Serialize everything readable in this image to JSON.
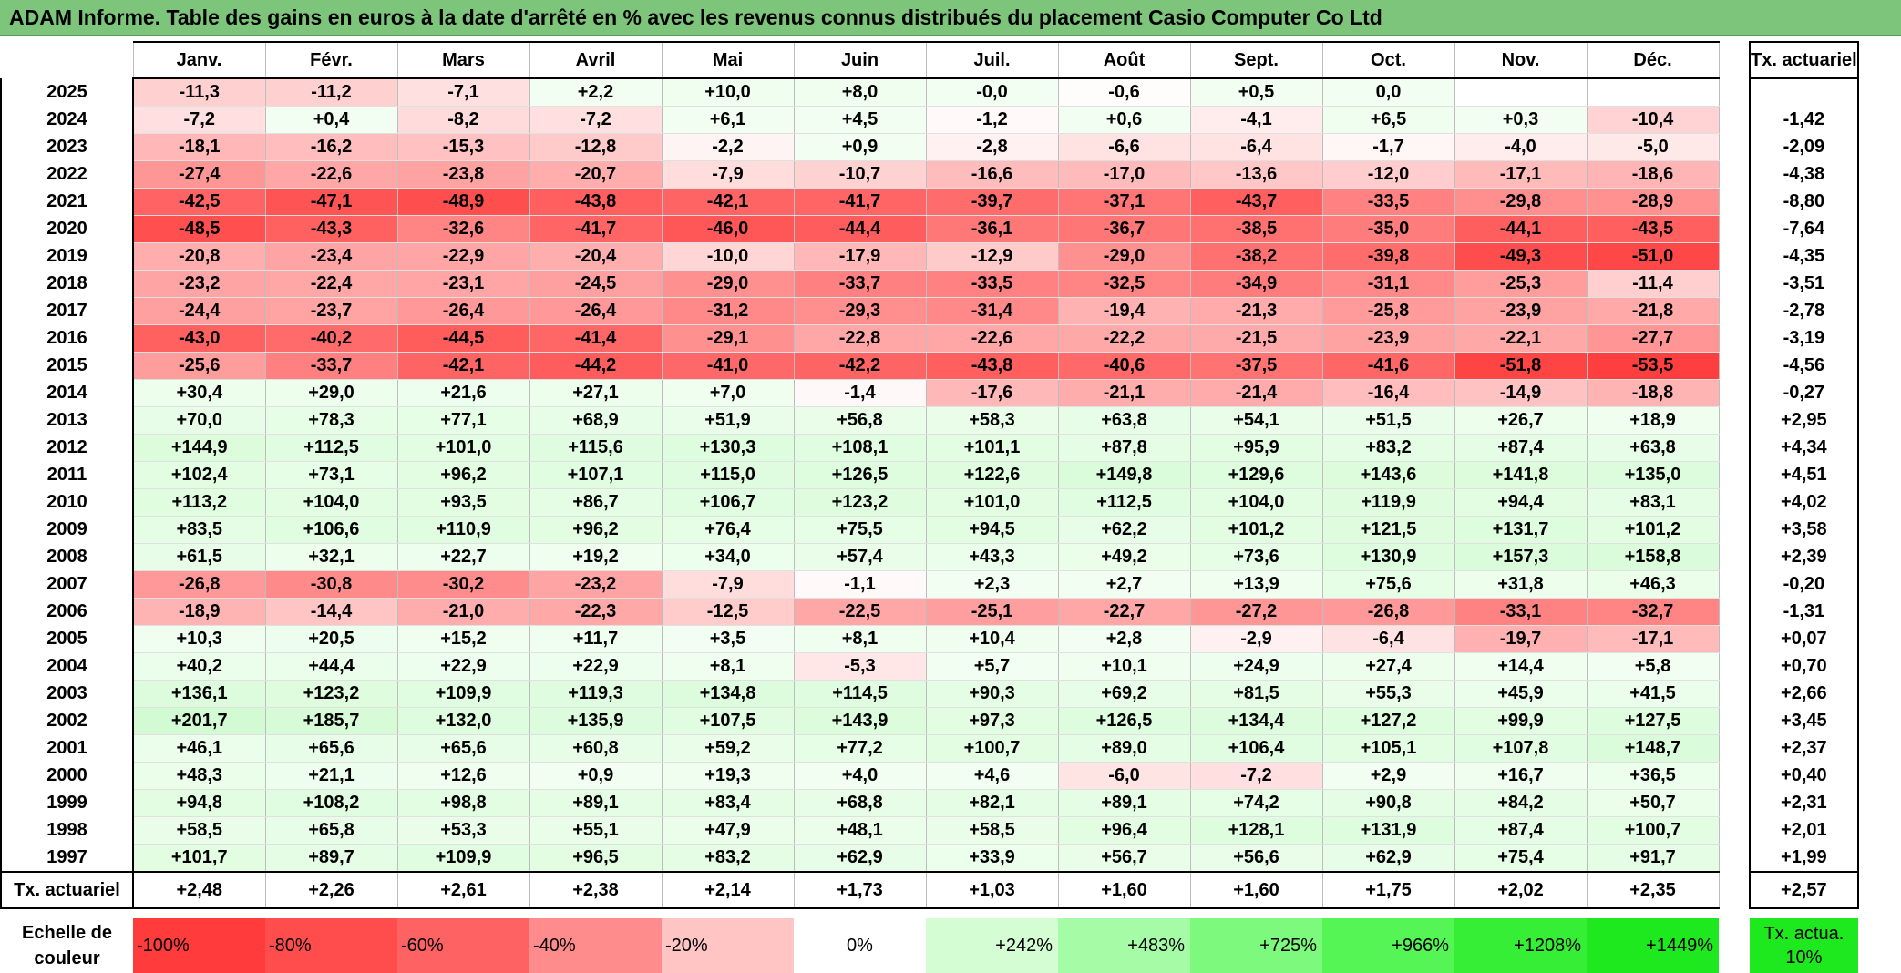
{
  "title": "ADAM Informe. Table des gains en euros à la date d'arrêté en % avec les revenus connus distribués du placement Casio Computer Co Ltd",
  "months": [
    "Janv.",
    "Févr.",
    "Mars",
    "Avril",
    "Mai",
    "Juin",
    "Juil.",
    "Août",
    "Sept.",
    "Oct.",
    "Nov.",
    "Déc."
  ],
  "rate_header": "Tx. actuariel",
  "rows": [
    {
      "year": "2025",
      "values": [
        "-11,3",
        "-11,2",
        "-7,1",
        "+2,2",
        "+10,0",
        "+8,0",
        "-0,0",
        "-0,6",
        "+0,5",
        "0,0",
        "",
        ""
      ],
      "rate": ""
    },
    {
      "year": "2024",
      "values": [
        "-7,2",
        "+0,4",
        "-8,2",
        "-7,2",
        "+6,1",
        "+4,5",
        "-1,2",
        "+0,6",
        "-4,1",
        "+6,5",
        "+0,3",
        "-10,4"
      ],
      "rate": "-1,42"
    },
    {
      "year": "2023",
      "values": [
        "-18,1",
        "-16,2",
        "-15,3",
        "-12,8",
        "-2,2",
        "+0,9",
        "-2,8",
        "-6,6",
        "-6,4",
        "-1,7",
        "-4,0",
        "-5,0"
      ],
      "rate": "-2,09"
    },
    {
      "year": "2022",
      "values": [
        "-27,4",
        "-22,6",
        "-23,8",
        "-20,7",
        "-7,9",
        "-10,7",
        "-16,6",
        "-17,0",
        "-13,6",
        "-12,0",
        "-17,1",
        "-18,6"
      ],
      "rate": "-4,38"
    },
    {
      "year": "2021",
      "values": [
        "-42,5",
        "-47,1",
        "-48,9",
        "-43,8",
        "-42,1",
        "-41,7",
        "-39,7",
        "-37,1",
        "-43,7",
        "-33,5",
        "-29,8",
        "-28,9"
      ],
      "rate": "-8,80"
    },
    {
      "year": "2020",
      "values": [
        "-48,5",
        "-43,3",
        "-32,6",
        "-41,7",
        "-46,0",
        "-44,4",
        "-36,1",
        "-36,7",
        "-38,5",
        "-35,0",
        "-44,1",
        "-43,5"
      ],
      "rate": "-7,64"
    },
    {
      "year": "2019",
      "values": [
        "-20,8",
        "-23,4",
        "-22,9",
        "-20,4",
        "-10,0",
        "-17,9",
        "-12,9",
        "-29,0",
        "-38,2",
        "-39,8",
        "-49,3",
        "-51,0"
      ],
      "rate": "-4,35"
    },
    {
      "year": "2018",
      "values": [
        "-23,2",
        "-22,4",
        "-23,1",
        "-24,5",
        "-29,0",
        "-33,7",
        "-33,5",
        "-32,5",
        "-34,9",
        "-31,1",
        "-25,3",
        "-11,4"
      ],
      "rate": "-3,51"
    },
    {
      "year": "2017",
      "values": [
        "-24,4",
        "-23,7",
        "-26,4",
        "-26,4",
        "-31,2",
        "-29,3",
        "-31,4",
        "-19,4",
        "-21,3",
        "-25,8",
        "-23,9",
        "-21,8"
      ],
      "rate": "-2,78"
    },
    {
      "year": "2016",
      "values": [
        "-43,0",
        "-40,2",
        "-44,5",
        "-41,4",
        "-29,1",
        "-22,8",
        "-22,6",
        "-22,2",
        "-21,5",
        "-23,9",
        "-22,1",
        "-27,7"
      ],
      "rate": "-3,19"
    },
    {
      "year": "2015",
      "values": [
        "-25,6",
        "-33,7",
        "-42,1",
        "-44,2",
        "-41,0",
        "-42,2",
        "-43,8",
        "-40,6",
        "-37,5",
        "-41,6",
        "-51,8",
        "-53,5"
      ],
      "rate": "-4,56"
    },
    {
      "year": "2014",
      "values": [
        "+30,4",
        "+29,0",
        "+21,6",
        "+27,1",
        "+7,0",
        "-1,4",
        "-17,6",
        "-21,1",
        "-21,4",
        "-16,4",
        "-14,9",
        "-18,8"
      ],
      "rate": "-0,27"
    },
    {
      "year": "2013",
      "values": [
        "+70,0",
        "+78,3",
        "+77,1",
        "+68,9",
        "+51,9",
        "+56,8",
        "+58,3",
        "+63,8",
        "+54,1",
        "+51,5",
        "+26,7",
        "+18,9"
      ],
      "rate": "+2,95"
    },
    {
      "year": "2012",
      "values": [
        "+144,9",
        "+112,5",
        "+101,0",
        "+115,6",
        "+130,3",
        "+108,1",
        "+101,1",
        "+87,8",
        "+95,9",
        "+83,2",
        "+87,4",
        "+63,8"
      ],
      "rate": "+4,34"
    },
    {
      "year": "2011",
      "values": [
        "+102,4",
        "+73,1",
        "+96,2",
        "+107,1",
        "+115,0",
        "+126,5",
        "+122,6",
        "+149,8",
        "+129,6",
        "+143,6",
        "+141,8",
        "+135,0"
      ],
      "rate": "+4,51"
    },
    {
      "year": "2010",
      "values": [
        "+113,2",
        "+104,0",
        "+93,5",
        "+86,7",
        "+106,7",
        "+123,2",
        "+101,0",
        "+112,5",
        "+104,0",
        "+119,9",
        "+94,4",
        "+83,1"
      ],
      "rate": "+4,02"
    },
    {
      "year": "2009",
      "values": [
        "+83,5",
        "+106,6",
        "+110,9",
        "+96,2",
        "+76,4",
        "+75,5",
        "+94,5",
        "+62,2",
        "+101,2",
        "+121,5",
        "+131,7",
        "+101,2"
      ],
      "rate": "+3,58"
    },
    {
      "year": "2008",
      "values": [
        "+61,5",
        "+32,1",
        "+22,7",
        "+19,2",
        "+34,0",
        "+57,4",
        "+43,3",
        "+49,2",
        "+73,6",
        "+130,9",
        "+157,3",
        "+158,8"
      ],
      "rate": "+2,39"
    },
    {
      "year": "2007",
      "values": [
        "-26,8",
        "-30,8",
        "-30,2",
        "-23,2",
        "-7,9",
        "-1,1",
        "+2,3",
        "+2,7",
        "+13,9",
        "+75,6",
        "+31,8",
        "+46,3"
      ],
      "rate": "-0,20"
    },
    {
      "year": "2006",
      "values": [
        "-18,9",
        "-14,4",
        "-21,0",
        "-22,3",
        "-12,5",
        "-22,5",
        "-25,1",
        "-22,7",
        "-27,2",
        "-26,8",
        "-33,1",
        "-32,7"
      ],
      "rate": "-1,31"
    },
    {
      "year": "2005",
      "values": [
        "+10,3",
        "+20,5",
        "+15,2",
        "+11,7",
        "+3,5",
        "+8,1",
        "+10,4",
        "+2,8",
        "-2,9",
        "-6,4",
        "-19,7",
        "-17,1"
      ],
      "rate": "+0,07"
    },
    {
      "year": "2004",
      "values": [
        "+40,2",
        "+44,4",
        "+22,9",
        "+22,9",
        "+8,1",
        "-5,3",
        "+5,7",
        "+10,1",
        "+24,9",
        "+27,4",
        "+14,4",
        "+5,8"
      ],
      "rate": "+0,70"
    },
    {
      "year": "2003",
      "values": [
        "+136,1",
        "+123,2",
        "+109,9",
        "+119,3",
        "+134,8",
        "+114,5",
        "+90,3",
        "+69,2",
        "+81,5",
        "+55,3",
        "+45,9",
        "+41,5"
      ],
      "rate": "+2,66"
    },
    {
      "year": "2002",
      "values": [
        "+201,7",
        "+185,7",
        "+132,0",
        "+135,9",
        "+107,5",
        "+143,9",
        "+97,3",
        "+126,5",
        "+134,4",
        "+127,2",
        "+99,9",
        "+127,5"
      ],
      "rate": "+3,45"
    },
    {
      "year": "2001",
      "values": [
        "+46,1",
        "+65,6",
        "+65,6",
        "+60,8",
        "+59,2",
        "+77,2",
        "+100,7",
        "+89,0",
        "+106,4",
        "+105,1",
        "+107,8",
        "+148,7"
      ],
      "rate": "+2,37"
    },
    {
      "year": "2000",
      "values": [
        "+48,3",
        "+21,1",
        "+12,6",
        "+0,9",
        "+19,3",
        "+4,0",
        "+4,6",
        "-6,0",
        "-7,2",
        "+2,9",
        "+16,7",
        "+36,5"
      ],
      "rate": "+0,40"
    },
    {
      "year": "1999",
      "values": [
        "+94,8",
        "+108,2",
        "+98,8",
        "+89,1",
        "+83,4",
        "+68,8",
        "+82,1",
        "+89,1",
        "+74,2",
        "+90,8",
        "+84,2",
        "+50,7"
      ],
      "rate": "+2,31"
    },
    {
      "year": "1998",
      "values": [
        "+58,5",
        "+65,8",
        "+53,3",
        "+55,1",
        "+47,9",
        "+48,1",
        "+58,5",
        "+96,4",
        "+128,1",
        "+131,9",
        "+87,4",
        "+100,7"
      ],
      "rate": "+2,01"
    },
    {
      "year": "1997",
      "values": [
        "+101,7",
        "+89,7",
        "+109,9",
        "+96,5",
        "+83,2",
        "+62,9",
        "+33,9",
        "+56,7",
        "+56,6",
        "+62,9",
        "+75,4",
        "+91,7"
      ],
      "rate": "+1,99"
    }
  ],
  "footer": {
    "label": "Tx. actuariel",
    "values": [
      "+2,48",
      "+2,26",
      "+2,61",
      "+2,38",
      "+2,14",
      "+1,73",
      "+1,03",
      "+1,60",
      "+1,60",
      "+1,75",
      "+2,02",
      "+2,35"
    ],
    "rate": "+2,57"
  },
  "scale": {
    "label": "Echelle de couleur",
    "items": [
      {
        "text": "-100%",
        "color": "#ff3b3b"
      },
      {
        "text": "-80%",
        "color": "#ff4d4d"
      },
      {
        "text": "-60%",
        "color": "#ff6262"
      },
      {
        "text": "-40%",
        "color": "#ff8c8c"
      },
      {
        "text": "-20%",
        "color": "#ffc4c4"
      },
      {
        "text": "0%",
        "color": "#ffffff"
      },
      {
        "text": "+242%",
        "color": "#d4fdd4"
      },
      {
        "text": "+483%",
        "color": "#a6fca6"
      },
      {
        "text": "+725%",
        "color": "#7dfa7d"
      },
      {
        "text": "+966%",
        "color": "#55f555"
      },
      {
        "text": "+1208%",
        "color": "#35ee35"
      },
      {
        "text": "+1449%",
        "color": "#1ee81e"
      }
    ],
    "rate_label": "Tx. actua. 10%",
    "rate_color": "#1ee81e"
  }
}
